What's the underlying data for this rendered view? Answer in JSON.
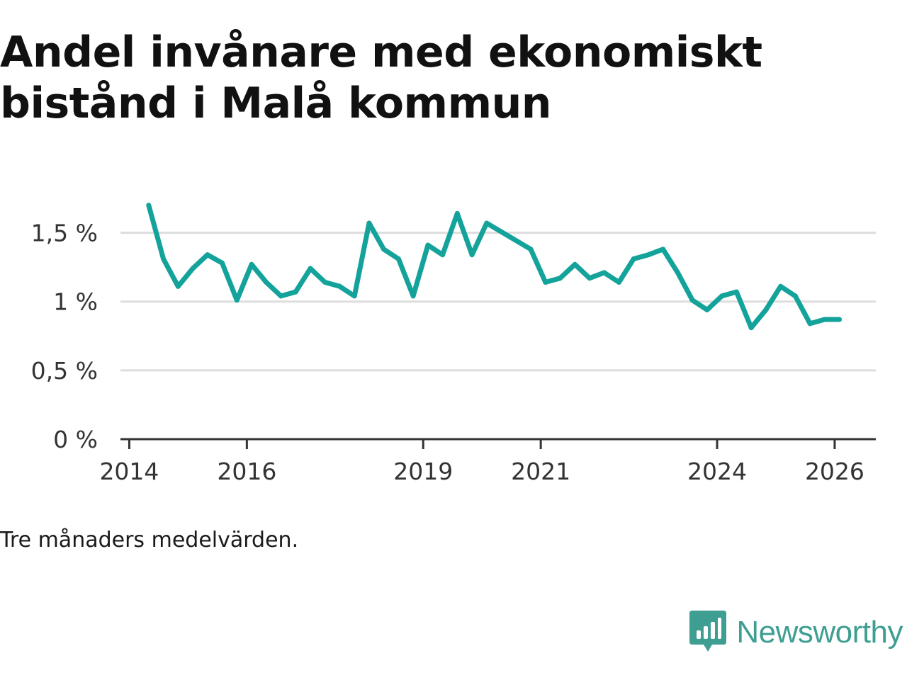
{
  "chart_data": {
    "type": "line",
    "title": "Andel invånare med ekonomiskt bistånd i Malå kommun",
    "note": "Tre månaders medelvärden.",
    "xlabel": "",
    "ylabel": "",
    "ylim": [
      0,
      1.75
    ],
    "xlim": [
      2013.85,
      2026.7
    ],
    "y_ticks": [
      {
        "value": 0,
        "label": "0 %"
      },
      {
        "value": 0.5,
        "label": "0,5 %"
      },
      {
        "value": 1,
        "label": "1 %"
      },
      {
        "value": 1.5,
        "label": "1,5 %"
      }
    ],
    "x_ticks": [
      {
        "value": 2014,
        "label": "2014"
      },
      {
        "value": 2016,
        "label": "2016"
      },
      {
        "value": 2019,
        "label": "2019"
      },
      {
        "value": 2021,
        "label": "2021"
      },
      {
        "value": 2024,
        "label": "2024"
      },
      {
        "value": 2026,
        "label": "2026"
      }
    ],
    "series": [
      {
        "name": "Andel invånare med ekonomiskt bistånd",
        "color": "#14a39a",
        "x": [
          2014.33,
          2014.58,
          2014.83,
          2015.08,
          2015.33,
          2015.58,
          2015.83,
          2016.08,
          2016.33,
          2016.58,
          2016.83,
          2017.08,
          2017.33,
          2017.58,
          2017.83,
          2018.08,
          2018.33,
          2018.58,
          2018.83,
          2019.08,
          2019.33,
          2019.58,
          2019.83,
          2020.08,
          2020.83,
          2021.08,
          2021.33,
          2021.58,
          2021.83,
          2022.08,
          2022.33,
          2022.58,
          2022.83,
          2023.08,
          2023.33,
          2023.58,
          2023.83,
          2024.08,
          2024.33,
          2024.58,
          2024.83,
          2025.08,
          2025.33,
          2025.58,
          2025.83,
          2026.08
        ],
        "values": [
          1.7,
          1.31,
          1.11,
          1.24,
          1.34,
          1.28,
          1.01,
          1.27,
          1.14,
          1.04,
          1.07,
          1.24,
          1.14,
          1.11,
          1.04,
          1.57,
          1.38,
          1.31,
          1.04,
          1.41,
          1.34,
          1.64,
          1.34,
          1.57,
          1.38,
          1.14,
          1.17,
          1.27,
          1.17,
          1.21,
          1.14,
          1.31,
          1.34,
          1.38,
          1.21,
          1.01,
          0.94,
          1.04,
          1.07,
          0.81,
          0.94,
          1.11,
          1.04,
          0.84,
          0.87,
          0.87
        ]
      }
    ]
  },
  "branding": {
    "name": "Newsworthy",
    "color": "#3f9e92",
    "icon": "newsworthy-logo-icon"
  }
}
